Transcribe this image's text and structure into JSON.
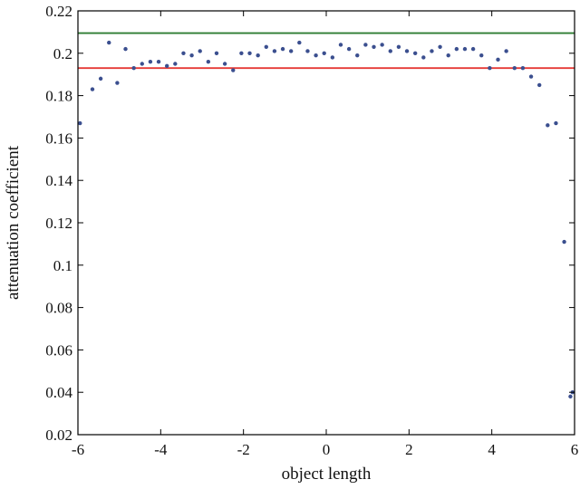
{
  "chart_data": {
    "type": "scatter",
    "title": "",
    "xlabel": "object length",
    "ylabel": "attenuation coefficient",
    "xlim": [
      -6,
      6
    ],
    "ylim": [
      0.02,
      0.22
    ],
    "grid": false,
    "legend": "none",
    "x_ticks": [
      -6,
      -4,
      -2,
      0,
      2,
      4,
      6
    ],
    "x_tick_labels": [
      "-6",
      "-4",
      "-2",
      "0",
      "2",
      "4",
      "6"
    ],
    "y_ticks": [
      0.02,
      0.04,
      0.06,
      0.08,
      0.1,
      0.12,
      0.14,
      0.16,
      0.18,
      0.2,
      0.22
    ],
    "y_tick_labels": [
      "0.02",
      "0.04",
      "0.06",
      "0.08",
      "0.1",
      "0.12",
      "0.14",
      "0.16",
      "0.18",
      "0.2",
      "0.22"
    ],
    "reference_lines": [
      {
        "y": 0.2095,
        "color": "#2e7d32"
      },
      {
        "y": 0.193,
        "color": "#e53935"
      }
    ],
    "series": [
      {
        "color": "#3b4f8f",
        "points": [
          [
            -5.95,
            0.167
          ],
          [
            -5.65,
            0.183
          ],
          [
            -5.45,
            0.188
          ],
          [
            -5.25,
            0.205
          ],
          [
            -5.05,
            0.186
          ],
          [
            -4.85,
            0.202
          ],
          [
            -4.65,
            0.193
          ],
          [
            -4.45,
            0.195
          ],
          [
            -4.25,
            0.196
          ],
          [
            -4.05,
            0.196
          ],
          [
            -3.85,
            0.194
          ],
          [
            -3.65,
            0.195
          ],
          [
            -3.45,
            0.2
          ],
          [
            -3.25,
            0.199
          ],
          [
            -3.05,
            0.201
          ],
          [
            -2.85,
            0.196
          ],
          [
            -2.65,
            0.2
          ],
          [
            -2.45,
            0.195
          ],
          [
            -2.25,
            0.192
          ],
          [
            -2.05,
            0.2
          ],
          [
            -1.85,
            0.2
          ],
          [
            -1.65,
            0.199
          ],
          [
            -1.45,
            0.203
          ],
          [
            -1.25,
            0.201
          ],
          [
            -1.05,
            0.202
          ],
          [
            -0.85,
            0.201
          ],
          [
            -0.65,
            0.205
          ],
          [
            -0.45,
            0.201
          ],
          [
            -0.25,
            0.199
          ],
          [
            -0.05,
            0.2
          ],
          [
            0.15,
            0.198
          ],
          [
            0.35,
            0.204
          ],
          [
            0.55,
            0.202
          ],
          [
            0.75,
            0.199
          ],
          [
            0.95,
            0.204
          ],
          [
            1.15,
            0.203
          ],
          [
            1.35,
            0.204
          ],
          [
            1.55,
            0.201
          ],
          [
            1.75,
            0.203
          ],
          [
            1.95,
            0.201
          ],
          [
            2.15,
            0.2
          ],
          [
            2.35,
            0.198
          ],
          [
            2.55,
            0.201
          ],
          [
            2.75,
            0.203
          ],
          [
            2.95,
            0.199
          ],
          [
            3.15,
            0.202
          ],
          [
            3.35,
            0.202
          ],
          [
            3.55,
            0.202
          ],
          [
            3.75,
            0.199
          ],
          [
            3.95,
            0.193
          ],
          [
            4.15,
            0.197
          ],
          [
            4.35,
            0.201
          ],
          [
            4.55,
            0.193
          ],
          [
            4.75,
            0.193
          ],
          [
            4.95,
            0.189
          ],
          [
            5.15,
            0.185
          ],
          [
            5.35,
            0.166
          ],
          [
            5.55,
            0.167
          ],
          [
            5.75,
            0.111
          ],
          [
            5.9,
            0.038
          ],
          [
            5.95,
            0.04
          ]
        ]
      }
    ]
  }
}
